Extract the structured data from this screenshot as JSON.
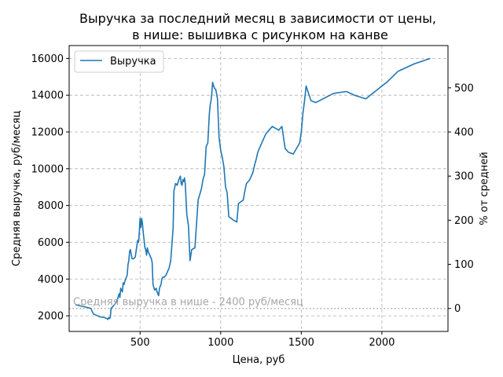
{
  "chart_data": {
    "type": "line",
    "title": [
      "Выручка за последний месяц в зависимости от цены,",
      "в нише: вышивка с рисунком на канве"
    ],
    "xlabel": "Цена, руб",
    "ylabel": "Средняя выручка, руб/месяц",
    "ylabel_right": "% от средней",
    "xlim": [
      60,
      2410
    ],
    "ylim": [
      1150,
      16700
    ],
    "xticks": [
      500,
      1000,
      1500,
      2000
    ],
    "yticks": [
      2000,
      4000,
      6000,
      8000,
      10000,
      12000,
      14000,
      16000
    ],
    "yticks_right": [
      0,
      100,
      200,
      300,
      400,
      500
    ],
    "grid": true,
    "legend_position": "top-left",
    "series": [
      {
        "name": "Выручка",
        "color": "#1f77b4",
        "x": [
          100,
          150,
          195,
          210,
          250,
          280,
          295,
          300,
          305,
          310,
          315,
          320,
          330,
          340,
          350,
          360,
          370,
          375,
          380,
          385,
          390,
          395,
          400,
          410,
          420,
          425,
          430,
          435,
          440,
          450,
          460,
          470,
          480,
          485,
          490,
          495,
          500,
          505,
          510,
          515,
          520,
          525,
          530,
          535,
          540,
          545,
          550,
          560,
          570,
          575,
          580,
          590,
          600,
          605,
          610,
          615,
          620,
          625,
          630,
          635,
          640,
          650,
          660,
          670,
          680,
          690,
          700,
          705,
          710,
          720,
          730,
          740,
          750,
          755,
          760,
          765,
          770,
          775,
          780,
          790,
          800,
          810,
          820,
          840,
          860,
          880,
          890,
          900,
          910,
          920,
          930,
          935,
          940,
          945,
          950,
          960,
          970,
          980,
          990,
          1000,
          1010,
          1020,
          1030,
          1040,
          1050,
          1080,
          1100,
          1110,
          1140,
          1150,
          1160,
          1180,
          1200,
          1210,
          1220,
          1230,
          1240,
          1260,
          1280,
          1300,
          1320,
          1340,
          1360,
          1380,
          1400,
          1410,
          1420,
          1450,
          1490,
          1500,
          1510,
          1520,
          1530,
          1560,
          1590,
          1700,
          1780,
          1830,
          1900,
          2000,
          2030,
          2100,
          2200,
          2300
        ],
        "y": [
          2600,
          2500,
          2400,
          2100,
          1950,
          1900,
          1850,
          1800,
          1900,
          1850,
          1900,
          2400,
          2500,
          2600,
          2700,
          2900,
          3200,
          3000,
          3500,
          3400,
          3300,
          3800,
          3700,
          4000,
          4200,
          4800,
          5000,
          5500,
          5600,
          5100,
          5100,
          5200,
          5800,
          6100,
          6000,
          6500,
          7300,
          6800,
          7300,
          7000,
          6500,
          6100,
          5700,
          5600,
          5300,
          5700,
          5500,
          5300,
          5100,
          4900,
          3700,
          3400,
          3500,
          3300,
          3200,
          3100,
          3500,
          3600,
          3700,
          4000,
          4100,
          4100,
          4200,
          4400,
          4600,
          5000,
          6200,
          6800,
          8800,
          9200,
          9100,
          9400,
          9600,
          9200,
          9100,
          9400,
          9300,
          9500,
          9200,
          7500,
          6900,
          5000,
          5600,
          5700,
          8300,
          8900,
          9400,
          9700,
          11200,
          11400,
          13000,
          13500,
          13700,
          14100,
          14700,
          14400,
          14300,
          13800,
          11700,
          11000,
          10600,
          10100,
          9000,
          8700,
          7400,
          7200,
          7100,
          8100,
          8300,
          8800,
          9200,
          9400,
          9800,
          10200,
          10500,
          10900,
          11100,
          11500,
          11900,
          12100,
          12300,
          12200,
          12100,
          12300,
          11100,
          11000,
          10900,
          10800,
          11400,
          12000,
          13000,
          13700,
          14500,
          13700,
          13600,
          14100,
          14200,
          14000,
          13800,
          14500,
          14700,
          15300,
          15700,
          16000
        ]
      }
    ],
    "annotations": [
      {
        "text": "Средняя выручка в нише - 2400 руб/месяц",
        "y": 2400
      }
    ]
  }
}
